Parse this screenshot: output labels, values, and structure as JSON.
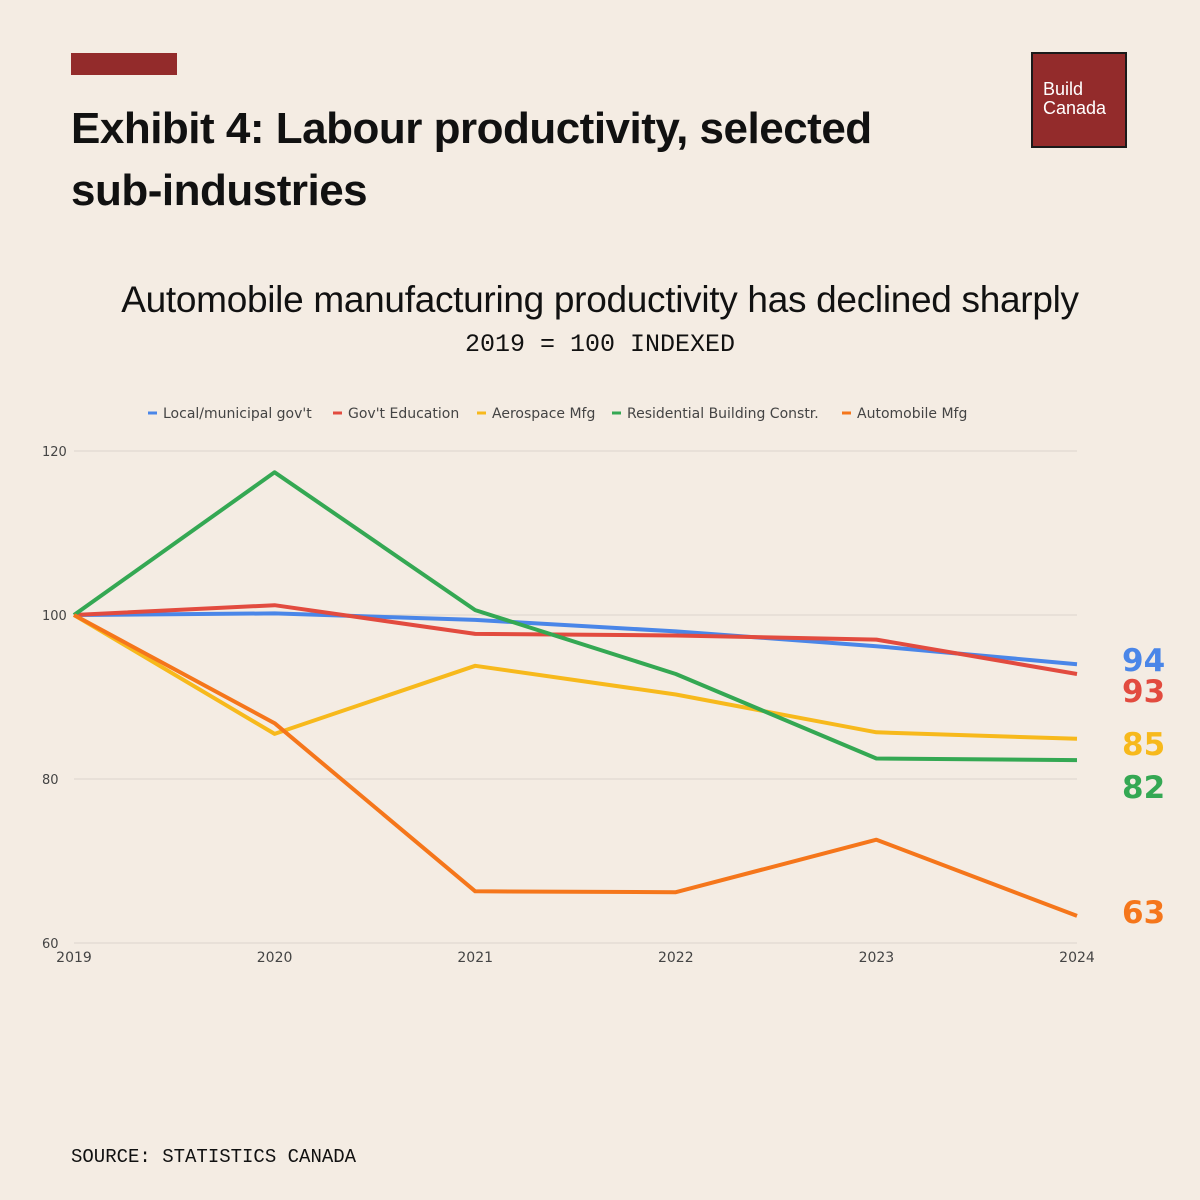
{
  "header": {
    "title": "Exhibit 4: Labour productivity, selected sub-industries",
    "logo_line1": "Build",
    "logo_line2": "Canada",
    "subtitle": "Automobile manufacturing productivity has declined sharply",
    "index_note": "2019 = 100 INDEXED"
  },
  "footer": {
    "source": "SOURCE: STATISTICS CANADA"
  },
  "colors": {
    "accent": "#932b2b",
    "background": "#f4ece3"
  },
  "chart_data": {
    "type": "line",
    "title": "Automobile manufacturing productivity has declined sharply",
    "subtitle": "2019 = 100 INDEXED",
    "x": [
      "2019",
      "2020",
      "2021",
      "2022",
      "2023",
      "2024"
    ],
    "ylim": [
      60,
      120
    ],
    "yticks": [
      60,
      80,
      100,
      120
    ],
    "xlabel": "",
    "ylabel": "",
    "grid": true,
    "legend": "top",
    "series": [
      {
        "name": "Local/municipal gov't",
        "color": "#4a86e8",
        "values": [
          100,
          100.2,
          99.4,
          98,
          96.2,
          94
        ],
        "end_label": "94"
      },
      {
        "name": "Gov't Education",
        "color": "#e24b3f",
        "values": [
          100,
          101.2,
          97.7,
          97.5,
          97,
          92.8
        ],
        "end_label": "93"
      },
      {
        "name": "Aerospace Mfg",
        "color": "#f7b91c",
        "values": [
          100,
          85.5,
          93.8,
          90.3,
          85.7,
          84.9
        ],
        "end_label": "85"
      },
      {
        "name": "Residential Building Constr.",
        "color": "#34a853",
        "values": [
          100,
          117.4,
          100.6,
          92.8,
          82.5,
          82.3
        ],
        "end_label": "82"
      },
      {
        "name": "Automobile Mfg",
        "color": "#f5761b",
        "values": [
          100,
          86.8,
          66.3,
          66.2,
          72.6,
          63.3
        ],
        "end_label": "63"
      }
    ]
  }
}
